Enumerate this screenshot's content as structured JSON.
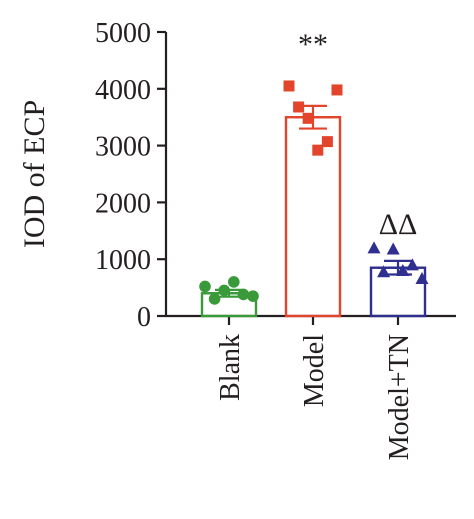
{
  "chart_data": {
    "type": "bar",
    "ylabel": "IOD of ECP",
    "ylim": [
      0,
      5000
    ],
    "yticks": [
      0,
      1000,
      2000,
      3000,
      4000,
      5000
    ],
    "categories": [
      "Blank",
      "Model",
      "Model+TN"
    ],
    "grid": false,
    "series": [
      {
        "values": [
          400,
          3500,
          850
        ],
        "errors": [
          60,
          200,
          120
        ],
        "colors": [
          "#3a9a3a",
          "#e2452b",
          "#2f2f8f"
        ],
        "markers": [
          "circle",
          "square",
          "triangle"
        ],
        "points": [
          [
            520,
            300,
            450,
            600,
            380,
            350
          ],
          [
            4050,
            3680,
            3480,
            2920,
            3070,
            3980
          ],
          [
            1200,
            780,
            1180,
            800,
            900,
            660
          ]
        ]
      }
    ],
    "annotations": [
      {
        "category": "Model",
        "text": "**"
      },
      {
        "category": "Model+TN",
        "text": "ΔΔ"
      }
    ]
  }
}
